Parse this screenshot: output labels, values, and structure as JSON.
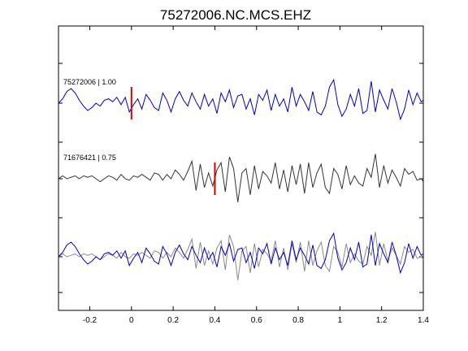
{
  "chart_data": {
    "type": "line",
    "title": "75272006.NC.MCS.EHZ",
    "xlabel": "",
    "ylabel": "",
    "xlim": [
      -0.35,
      1.4
    ],
    "x_ticks": [
      -0.2,
      0,
      0.2,
      0.4,
      0.6,
      0.8,
      1,
      1.2,
      1.4
    ],
    "x_tick_labels": [
      "-0.2",
      "0",
      "0.2",
      "0.4",
      "0.6",
      "0.8",
      "1",
      "1.2",
      "1.4"
    ],
    "grid": false,
    "legend": "none",
    "colors": {
      "primary": "#0000cc",
      "reference": "#333333",
      "overlay_reference": "#8a8a8a",
      "pick": "#dd0000"
    },
    "traces": [
      {
        "label": "75272006 | 1.00",
        "color": "#0000cc",
        "pick_time": 0.0,
        "x": [
          -0.35,
          -0.33,
          -0.31,
          -0.29,
          -0.27,
          -0.25,
          -0.23,
          -0.21,
          -0.19,
          -0.17,
          -0.15,
          -0.13,
          -0.11,
          -0.09,
          -0.07,
          -0.05,
          -0.03,
          -0.01,
          0.01,
          0.03,
          0.05,
          0.07,
          0.09,
          0.11,
          0.13,
          0.15,
          0.17,
          0.19,
          0.21,
          0.23,
          0.25,
          0.27,
          0.29,
          0.31,
          0.33,
          0.35,
          0.37,
          0.39,
          0.41,
          0.43,
          0.45,
          0.47,
          0.49,
          0.51,
          0.53,
          0.55,
          0.57,
          0.59,
          0.61,
          0.63,
          0.65,
          0.67,
          0.69,
          0.71,
          0.73,
          0.75,
          0.77,
          0.79,
          0.81,
          0.83,
          0.85,
          0.87,
          0.89,
          0.91,
          0.93,
          0.95,
          0.97,
          0.99,
          1.01,
          1.03,
          1.05,
          1.07,
          1.09,
          1.11,
          1.13,
          1.15,
          1.17,
          1.19,
          1.21,
          1.23,
          1.25,
          1.27,
          1.29,
          1.31,
          1.33,
          1.35,
          1.37,
          1.39,
          1.4
        ],
        "y": [
          0.0,
          0.15,
          0.4,
          0.5,
          0.35,
          0.1,
          -0.1,
          -0.25,
          -0.15,
          0.0,
          -0.1,
          0.1,
          0.15,
          0.05,
          0.2,
          -0.05,
          0.2,
          -0.3,
          -0.05,
          0.15,
          -0.2,
          0.3,
          0.1,
          -0.15,
          -0.25,
          0.35,
          0.1,
          -0.3,
          0.15,
          0.4,
          0.1,
          -0.1,
          0.35,
          0.05,
          -0.2,
          0.3,
          -0.1,
          0.15,
          -0.35,
          0.35,
          0.05,
          0.45,
          -0.15,
          0.25,
          0.3,
          -0.2,
          0.15,
          -0.4,
          0.3,
          0.1,
          0.45,
          -0.25,
          0.3,
          -0.1,
          0.15,
          -0.3,
          0.55,
          -0.1,
          0.3,
          0.05,
          -0.25,
          0.4,
          -0.3,
          -0.4,
          -0.1,
          0.55,
          0.8,
          -0.05,
          -0.45,
          -0.2,
          0.3,
          -0.1,
          0.5,
          -0.35,
          -0.25,
          0.75,
          -0.3,
          0.45,
          0.1,
          -0.2,
          0.5,
          0.05,
          -0.55,
          -0.2,
          0.45,
          -0.05,
          0.35,
          0.05,
          0.1
        ]
      },
      {
        "label": "71676421 | 0.75",
        "color": "#333333",
        "pick_time": 0.4,
        "x": [
          -0.35,
          -0.33,
          -0.31,
          -0.29,
          -0.27,
          -0.25,
          -0.23,
          -0.21,
          -0.19,
          -0.17,
          -0.15,
          -0.13,
          -0.11,
          -0.09,
          -0.07,
          -0.05,
          -0.03,
          -0.01,
          0.01,
          0.03,
          0.05,
          0.07,
          0.09,
          0.11,
          0.13,
          0.15,
          0.17,
          0.19,
          0.21,
          0.23,
          0.25,
          0.27,
          0.29,
          0.31,
          0.33,
          0.35,
          0.37,
          0.39,
          0.41,
          0.43,
          0.45,
          0.47,
          0.49,
          0.51,
          0.53,
          0.55,
          0.57,
          0.59,
          0.61,
          0.63,
          0.65,
          0.67,
          0.69,
          0.71,
          0.73,
          0.75,
          0.77,
          0.79,
          0.81,
          0.83,
          0.85,
          0.87,
          0.89,
          0.91,
          0.93,
          0.95,
          0.97,
          0.99,
          1.01,
          1.03,
          1.05,
          1.07,
          1.09,
          1.11,
          1.13,
          1.15,
          1.17,
          1.19,
          1.21,
          1.23,
          1.25,
          1.27,
          1.29,
          1.31,
          1.33,
          1.35,
          1.37,
          1.39,
          1.4
        ],
        "y": [
          0.0,
          0.1,
          0.0,
          0.05,
          0.1,
          0.0,
          0.1,
          0.05,
          0.1,
          0.0,
          -0.1,
          0.0,
          0.1,
          0.05,
          -0.05,
          0.15,
          0.0,
          -0.05,
          0.1,
          0.05,
          0.15,
          0.05,
          -0.05,
          0.2,
          0.15,
          -0.05,
          0.15,
          0.0,
          0.3,
          0.15,
          -0.05,
          0.25,
          0.6,
          -0.4,
          0.5,
          -0.3,
          0.2,
          -0.25,
          0.3,
          0.55,
          -0.45,
          0.75,
          0.35,
          -0.8,
          0.2,
          0.35,
          -0.55,
          0.45,
          -0.35,
          0.25,
          0.1,
          -0.15,
          0.55,
          -0.35,
          0.3,
          -0.45,
          0.45,
          -0.2,
          0.5,
          -0.5,
          0.55,
          -0.3,
          0.2,
          0.5,
          -0.3,
          -0.5,
          0.35,
          0.15,
          -0.35,
          0.45,
          -0.2,
          0.1,
          -0.15,
          -0.25,
          0.35,
          0.05,
          0.85,
          -0.3,
          0.45,
          -0.15,
          0.3,
          0.05,
          -0.25,
          0.35,
          0.15,
          0.25,
          -0.05,
          0.0,
          -0.1
        ]
      },
      {
        "label": "",
        "overlay": true,
        "series": [
          {
            "color": "#8a8a8a",
            "x": [
              -0.35,
              -0.33,
              -0.31,
              -0.29,
              -0.27,
              -0.25,
              -0.23,
              -0.21,
              -0.19,
              -0.17,
              -0.15,
              -0.13,
              -0.11,
              -0.09,
              -0.07,
              -0.05,
              -0.03,
              -0.01,
              0.01,
              0.03,
              0.05,
              0.07,
              0.09,
              0.11,
              0.13,
              0.15,
              0.17,
              0.19,
              0.21,
              0.23,
              0.25,
              0.27,
              0.29,
              0.31,
              0.33,
              0.35,
              0.37,
              0.39,
              0.41,
              0.43,
              0.45,
              0.47,
              0.49,
              0.51,
              0.53,
              0.55,
              0.57,
              0.59,
              0.61,
              0.63,
              0.65,
              0.67,
              0.69,
              0.71,
              0.73,
              0.75,
              0.77,
              0.79,
              0.81,
              0.83,
              0.85,
              0.87,
              0.89,
              0.91,
              0.93,
              0.95,
              0.97,
              0.99,
              1.01,
              1.03,
              1.05,
              1.07,
              1.09,
              1.11,
              1.13,
              1.15,
              1.17,
              1.19,
              1.21,
              1.23,
              1.25,
              1.27,
              1.29,
              1.31,
              1.33,
              1.35,
              1.37,
              1.39,
              1.4
            ],
            "y": [
              0.0,
              0.1,
              0.0,
              0.05,
              0.1,
              0.0,
              0.1,
              0.05,
              0.1,
              0.0,
              -0.1,
              0.0,
              0.1,
              0.05,
              -0.05,
              0.15,
              0.0,
              -0.05,
              0.1,
              0.05,
              0.15,
              0.05,
              -0.05,
              0.2,
              0.15,
              -0.05,
              0.15,
              0.0,
              0.3,
              0.15,
              -0.05,
              0.25,
              0.6,
              -0.4,
              0.5,
              -0.3,
              0.2,
              -0.25,
              0.3,
              0.55,
              -0.45,
              0.75,
              0.35,
              -0.8,
              0.2,
              0.35,
              -0.55,
              0.45,
              -0.35,
              0.25,
              0.1,
              -0.15,
              0.55,
              -0.35,
              0.3,
              -0.45,
              0.45,
              -0.2,
              0.5,
              -0.5,
              0.55,
              -0.3,
              0.2,
              0.5,
              -0.3,
              -0.5,
              0.35,
              0.15,
              -0.35,
              0.45,
              -0.2,
              0.1,
              -0.15,
              -0.25,
              0.35,
              0.05,
              0.85,
              -0.3,
              0.45,
              -0.15,
              0.3,
              0.05,
              -0.25,
              0.35,
              0.15,
              0.25,
              -0.05,
              0.0,
              -0.1
            ]
          },
          {
            "color": "#0000cc",
            "x": [
              -0.35,
              -0.33,
              -0.31,
              -0.29,
              -0.27,
              -0.25,
              -0.23,
              -0.21,
              -0.19,
              -0.17,
              -0.15,
              -0.13,
              -0.11,
              -0.09,
              -0.07,
              -0.05,
              -0.03,
              -0.01,
              0.01,
              0.03,
              0.05,
              0.07,
              0.09,
              0.11,
              0.13,
              0.15,
              0.17,
              0.19,
              0.21,
              0.23,
              0.25,
              0.27,
              0.29,
              0.31,
              0.33,
              0.35,
              0.37,
              0.39,
              0.41,
              0.43,
              0.45,
              0.47,
              0.49,
              0.51,
              0.53,
              0.55,
              0.57,
              0.59,
              0.61,
              0.63,
              0.65,
              0.67,
              0.69,
              0.71,
              0.73,
              0.75,
              0.77,
              0.79,
              0.81,
              0.83,
              0.85,
              0.87,
              0.89,
              0.91,
              0.93,
              0.95,
              0.97,
              0.99,
              1.01,
              1.03,
              1.05,
              1.07,
              1.09,
              1.11,
              1.13,
              1.15,
              1.17,
              1.19,
              1.21,
              1.23,
              1.25,
              1.27,
              1.29,
              1.31,
              1.33,
              1.35,
              1.37,
              1.39,
              1.4
            ],
            "y": [
              0.0,
              0.15,
              0.4,
              0.5,
              0.35,
              0.1,
              -0.1,
              -0.25,
              -0.15,
              0.0,
              -0.1,
              0.1,
              0.15,
              0.05,
              0.2,
              -0.05,
              0.2,
              -0.3,
              -0.05,
              0.15,
              -0.2,
              0.3,
              0.1,
              -0.15,
              -0.25,
              0.35,
              0.1,
              -0.3,
              0.15,
              0.4,
              0.1,
              -0.1,
              0.35,
              0.05,
              -0.2,
              0.3,
              -0.1,
              0.15,
              -0.35,
              0.35,
              0.05,
              0.45,
              -0.15,
              0.25,
              0.3,
              -0.2,
              0.15,
              -0.4,
              0.3,
              0.1,
              0.45,
              -0.25,
              0.3,
              -0.1,
              0.15,
              -0.3,
              0.55,
              -0.1,
              0.3,
              0.05,
              -0.25,
              0.4,
              -0.3,
              -0.4,
              -0.1,
              0.55,
              0.8,
              -0.05,
              -0.45,
              -0.2,
              0.3,
              -0.1,
              0.5,
              -0.35,
              -0.25,
              0.75,
              -0.3,
              0.45,
              0.1,
              -0.2,
              0.5,
              0.05,
              -0.55,
              -0.2,
              0.45,
              -0.05,
              0.35,
              0.05,
              0.1
            ]
          }
        ]
      }
    ]
  }
}
